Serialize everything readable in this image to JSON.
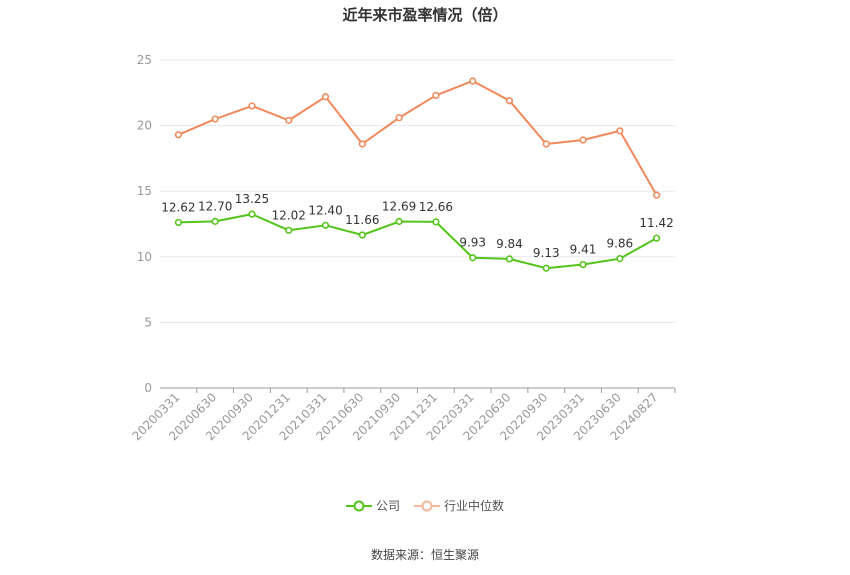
{
  "chart_data": {
    "type": "line",
    "title": "近年来市盈率情况（倍）",
    "categories": [
      "20200331",
      "20200630",
      "20200930",
      "20201231",
      "20210331",
      "20210630",
      "20210930",
      "20211231",
      "20220331",
      "20220630",
      "20220930",
      "20230331",
      "20230630",
      "20240827"
    ],
    "series": [
      {
        "name": "公司",
        "color": "#52c41a",
        "values": [
          12.62,
          12.7,
          13.25,
          12.02,
          12.4,
          11.66,
          12.69,
          12.66,
          9.93,
          9.84,
          9.13,
          9.41,
          9.86,
          11.42
        ],
        "labels": [
          "12.62",
          "12.70",
          "13.25",
          "12.02",
          "12.40",
          "11.66",
          "12.69",
          "12.66",
          "9.93",
          "9.84",
          "9.13",
          "9.41",
          "9.86",
          "11.42"
        ]
      },
      {
        "name": "行业中位数",
        "color": "#f0895a",
        "values": [
          19.3,
          20.5,
          21.5,
          20.4,
          22.2,
          18.6,
          20.6,
          22.3,
          23.4,
          21.9,
          18.6,
          18.9,
          19.6,
          14.7
        ]
      }
    ],
    "ylim": [
      0,
      25
    ],
    "yticks": [
      "0",
      "5",
      "10",
      "15",
      "20",
      "25"
    ],
    "grid": true,
    "legend_position": "bottom"
  },
  "source": "数据来源：恒生聚源"
}
